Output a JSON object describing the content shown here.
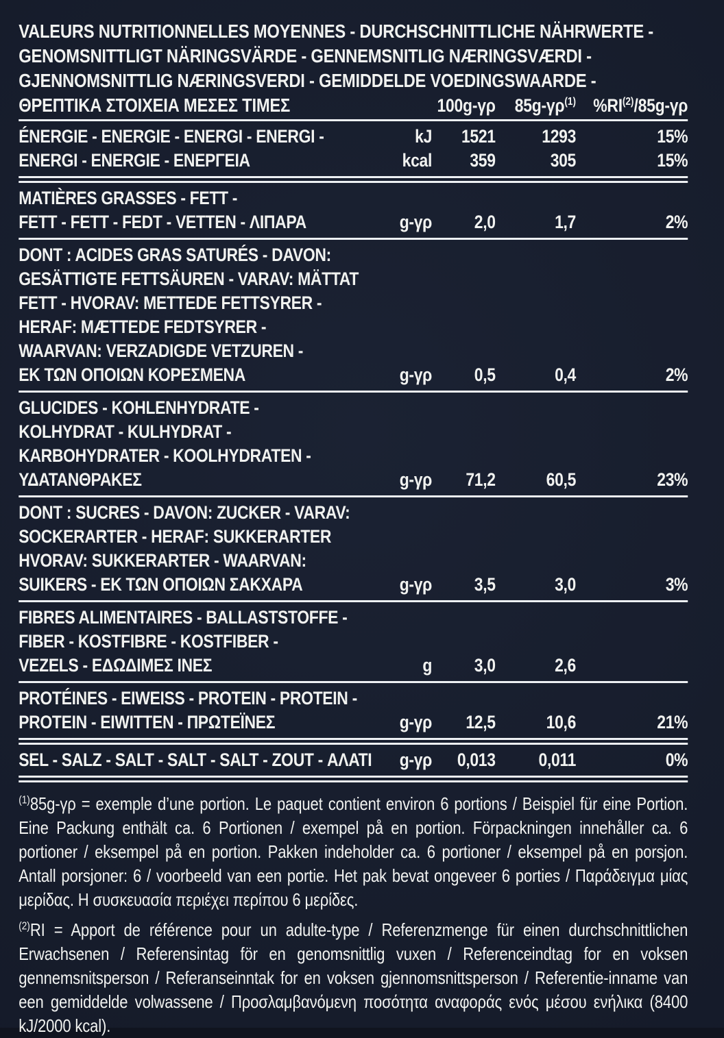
{
  "colors": {
    "background": "#161c2b",
    "text": "#f1f2f0",
    "rule": "#edf0f3"
  },
  "header": {
    "title_lines": [
      "VALEURS NUTRITIONNELLES MOYENNES - DURCHSCHNITTLICHE NÄHRWERTE -",
      "GENOMSNITTLIGT NÄRINGSVÄRDE - GENNEMSNITLIG NÆRINGSVÆRDI -",
      "GJENNOMSNITTLIG NÆRINGSVERDI - GEMIDDELDE VOEDINGSWAARDE -"
    ],
    "title_greek": "ΘΡΕΠΤΙΚΑ ΣΤΟΙΧΕΙΑ ΜΕΣΕΣ ΤΙΜΕΣ",
    "columns": {
      "per100": "100g-γρ",
      "per85_base": "85g-γρ",
      "per85_sup": "(1)",
      "ri_pre": "%RI",
      "ri_sup": "(2)",
      "ri_post": "/85g-γρ"
    }
  },
  "table": {
    "sections": [
      {
        "id": "energy",
        "label_lines": [
          "ÉNERGIE - ENERGIE - ENERGI - ENERGI -",
          "ENERGI - ENERGIE - ΕΝΕΡΓΕΙΑ"
        ],
        "value_rows": [
          {
            "unit": "kJ",
            "per100": "1521",
            "per85": "1293",
            "ri": "15%"
          },
          {
            "unit": "kcal",
            "per100": "359",
            "per85": "305",
            "ri": "15%"
          }
        ],
        "sep_after": "double"
      },
      {
        "id": "fat",
        "label_lines": [
          "MATIÈRES GRASSES - FETT -",
          "FETT - FETT - FEDT - VETTEN - ΛΙΠΑΡΑ"
        ],
        "unit": "g-γρ",
        "per100": "2,0",
        "per85": "1,7",
        "ri": "2%",
        "sep_after": "single"
      },
      {
        "id": "saturated-fat",
        "label_lines": [
          "DONT : ACIDES GRAS SATURÉS - DAVON:",
          "GESÄTTIGTE FETTSÄUREN - VARAV: MÄTTAT",
          "FETT - HVORAV: METTEDE FETTSYRER -",
          "HERAF: MÆTTEDE FEDTSYRER -",
          "WAARVAN: VERZADIGDE VETZUREN -",
          "ΕΚ ΤΩΝ ΟΠΟΙΩΝ ΚΟΡΕΣΜΕΝΑ"
        ],
        "unit": "g-γρ",
        "per100": "0,5",
        "per85": "0,4",
        "ri": "2%",
        "sep_after": "single"
      },
      {
        "id": "carbohydrates",
        "label_lines": [
          "GLUCIDES - KOHLENHYDRATE -",
          "KOLHYDRAT - KULHYDRAT -",
          "KARBOHYDRATER - KOOLHYDRATEN -",
          "ΥΔΑΤΑΝΘΡΑΚΕΣ"
        ],
        "unit": "g-γρ",
        "per100": "71,2",
        "per85": "60,5",
        "ri": "23%",
        "sep_after": "single"
      },
      {
        "id": "sugars",
        "label_lines": [
          "DONT : SUCRES - DAVON: ZUCKER - VARAV:",
          "SOCKERARTER - HERAF: SUKKERARTER",
          "HVORAV: SUKKERARTER - WAARVAN:",
          "SUIKERS - ΕΚ ΤΩΝ ΟΠΟΙΩΝ ΣΑΚΧΑΡΑ"
        ],
        "unit": "g-γρ",
        "per100": "3,5",
        "per85": "3,0",
        "ri": "3%",
        "sep_after": "single"
      },
      {
        "id": "fibre",
        "label_lines": [
          "FIBRES ALIMENTAIRES - BALLASTSTOFFE -",
          "FIBER - KOSTFIBRE - KOSTFIBER -",
          "VEZELS - ΕΔΩΔΙΜΕΣ ΙΝΕΣ"
        ],
        "unit": "g",
        "per100": "3,0",
        "per85": "2,6",
        "ri": "",
        "sep_after": "single"
      },
      {
        "id": "protein",
        "label_lines": [
          "PROTÉINES - EIWEISS - PROTEIN - PROTEIN -",
          "PROTEIN - EIWITTEN - ΠΡΩΤΕΪΝΕΣ"
        ],
        "unit": "g-γρ",
        "per100": "12,5",
        "per85": "10,6",
        "ri": "21%",
        "sep_after": "double"
      },
      {
        "id": "salt",
        "label_lines": [
          "SEL - SALZ - SALT - SALT - SALT - ZOUT - ΑΛΑΤΙ"
        ],
        "unit": "g-γρ",
        "per100": "0,013",
        "per85": "0,011",
        "ri": "0%",
        "sep_after": "double"
      }
    ]
  },
  "footnotes": [
    {
      "sup": "(1)",
      "text": "85g-γρ = exemple d’une portion. Le paquet contient environ 6 portions / Beispiel für eine Portion. Eine Packung enthält ca. 6 Portionen / exempel på en portion. Förpackningen innehåller ca. 6 portioner / eksempel på en portion. Pakken indeholder ca. 6 portioner / eksempel på en porsjon. Antall porsjoner: 6 / voorbeeld van een portie. Het pak bevat ongeveer 6 porties / Παράδειγμα μίας μερίδας. Η συσκευασία περιέχει περίπου 6 μερίδες."
    },
    {
      "sup": "(2)",
      "text": "RI = Apport de référence pour un adulte-type / Referenzmenge für einen durchschnittlichen Erwachsenen / Referensintag för en genomsnittlig vuxen / Referenceindtag for en voksen gennemsnitsperson / Referanseinntak for en voksen gjennomsnittsperson / Referentie-inname van een gemiddelde volwassene / Προσλαμβανόμενη ποσότητα αναφοράς ενός μέσου ενήλικα (8400 kJ/2000 kcal)."
    }
  ]
}
